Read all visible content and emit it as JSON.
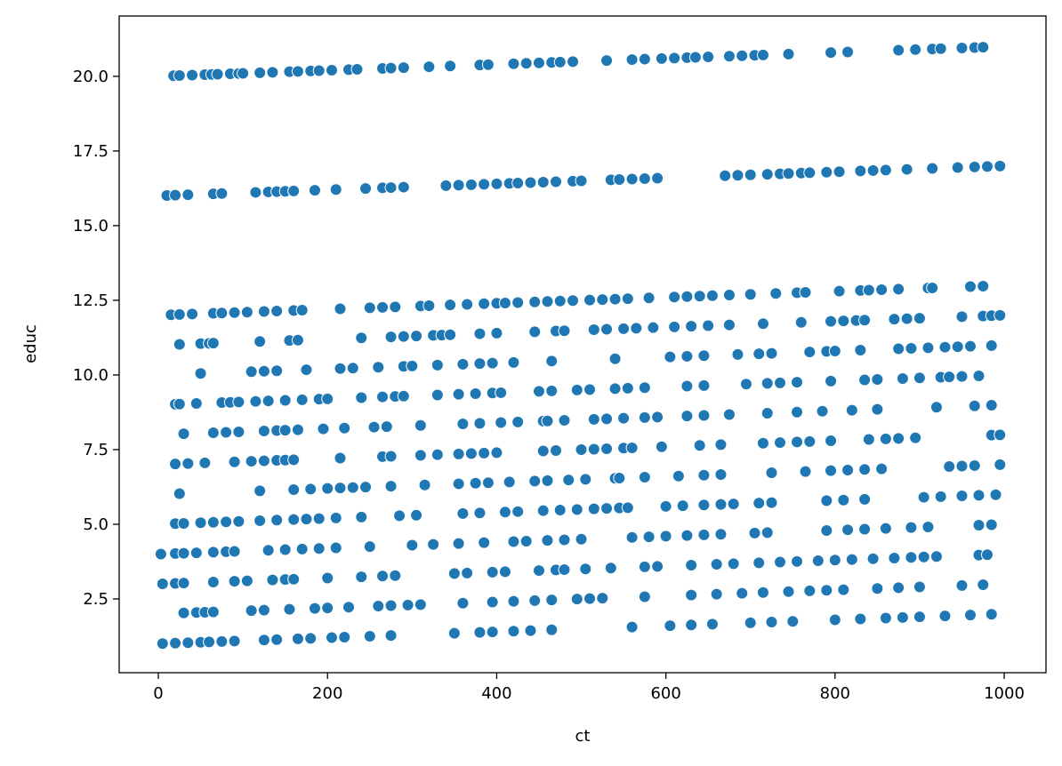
{
  "chart_data": {
    "type": "scatter",
    "xlabel": "ct",
    "ylabel": "educ",
    "color": "#1f77b4",
    "xlim": [
      -46.3,
      1049.4
    ],
    "ylim": [
      0.03,
      22.02
    ],
    "xticks": [
      0,
      200,
      400,
      600,
      800,
      1000
    ],
    "yticks": [
      {
        "value": 2.5,
        "label": "2.5"
      },
      {
        "value": 5,
        "label": "5.0"
      },
      {
        "value": 7.5,
        "label": "7.5"
      },
      {
        "value": 10,
        "label": "10.0"
      },
      {
        "value": 12.5,
        "label": "12.5"
      },
      {
        "value": 15,
        "label": "15.0"
      },
      {
        "value": 17.5,
        "label": "17.5"
      },
      {
        "value": 20,
        "label": "20.0"
      }
    ],
    "x": [
      18,
      25,
      40,
      55,
      63,
      70,
      85,
      95,
      100,
      120,
      135,
      155,
      165,
      180,
      190,
      205,
      225,
      235,
      265,
      275,
      290,
      320,
      345,
      380,
      390,
      420,
      435,
      450,
      465,
      475,
      490,
      530,
      560,
      575,
      595,
      610,
      625,
      635,
      650,
      675,
      690,
      705,
      715,
      745,
      795,
      815,
      875,
      895,
      915,
      925,
      950,
      965,
      975,
      10,
      20,
      35,
      65,
      75,
      115,
      130,
      140,
      150,
      160,
      185,
      210,
      245,
      265,
      275,
      290,
      340,
      355,
      370,
      385,
      400,
      415,
      425,
      440,
      455,
      470,
      490,
      500,
      535,
      545,
      560,
      575,
      590,
      670,
      685,
      700,
      720,
      735,
      745,
      760,
      770,
      790,
      805,
      830,
      845,
      860,
      885,
      915,
      945,
      965,
      980,
      995,
      15,
      25,
      40,
      65,
      75,
      90,
      105,
      125,
      140,
      160,
      170,
      215,
      250,
      265,
      280,
      310,
      320,
      345,
      365,
      385,
      400,
      410,
      425,
      445,
      460,
      475,
      490,
      510,
      525,
      540,
      555,
      580,
      610,
      625,
      640,
      655,
      675,
      700,
      730,
      755,
      765,
      805,
      830,
      840,
      855,
      875,
      910,
      915,
      960,
      975,
      25,
      50,
      60,
      65,
      120,
      155,
      165,
      240,
      275,
      290,
      305,
      325,
      335,
      345,
      380,
      400,
      445,
      470,
      480,
      515,
      530,
      550,
      565,
      585,
      610,
      630,
      650,
      675,
      715,
      760,
      795,
      810,
      825,
      835,
      870,
      885,
      900,
      950,
      975,
      985,
      995,
      50,
      110,
      125,
      140,
      175,
      215,
      230,
      260,
      290,
      300,
      330,
      360,
      380,
      395,
      420,
      465,
      540,
      605,
      625,
      645,
      685,
      710,
      725,
      770,
      790,
      800,
      830,
      875,
      890,
      910,
      930,
      945,
      960,
      985,
      20,
      25,
      45,
      75,
      85,
      95,
      115,
      130,
      150,
      170,
      190,
      200,
      240,
      265,
      280,
      290,
      330,
      355,
      375,
      395,
      405,
      450,
      465,
      495,
      510,
      540,
      555,
      575,
      625,
      645,
      695,
      720,
      735,
      755,
      795,
      835,
      850,
      880,
      900,
      925,
      935,
      950,
      970,
      30,
      65,
      80,
      95,
      125,
      140,
      150,
      165,
      195,
      220,
      255,
      270,
      310,
      360,
      380,
      405,
      425,
      455,
      460,
      480,
      515,
      530,
      550,
      575,
      590,
      625,
      645,
      675,
      720,
      755,
      785,
      820,
      850,
      920,
      965,
      985,
      20,
      35,
      55,
      90,
      110,
      125,
      140,
      150,
      160,
      215,
      265,
      275,
      310,
      330,
      355,
      370,
      385,
      400,
      455,
      470,
      500,
      515,
      530,
      550,
      560,
      595,
      640,
      665,
      715,
      735,
      755,
      770,
      795,
      840,
      860,
      875,
      895,
      985,
      995,
      25,
      120,
      160,
      180,
      200,
      215,
      230,
      245,
      275,
      315,
      355,
      375,
      390,
      415,
      445,
      460,
      485,
      505,
      540,
      545,
      575,
      615,
      645,
      665,
      725,
      765,
      795,
      815,
      835,
      855,
      935,
      950,
      965,
      995,
      20,
      30,
      50,
      65,
      80,
      95,
      120,
      140,
      160,
      175,
      190,
      210,
      240,
      285,
      305,
      360,
      380,
      410,
      425,
      455,
      475,
      495,
      515,
      530,
      545,
      555,
      600,
      620,
      645,
      665,
      680,
      710,
      725,
      790,
      810,
      835,
      905,
      925,
      950,
      970,
      990,
      3,
      20,
      30,
      45,
      65,
      80,
      90,
      130,
      150,
      170,
      190,
      210,
      250,
      300,
      325,
      355,
      385,
      420,
      435,
      460,
      480,
      500,
      560,
      580,
      600,
      625,
      645,
      665,
      705,
      720,
      790,
      815,
      835,
      860,
      890,
      910,
      970,
      985,
      5,
      20,
      30,
      65,
      90,
      105,
      135,
      150,
      160,
      200,
      240,
      265,
      280,
      350,
      365,
      395,
      410,
      450,
      470,
      480,
      505,
      535,
      575,
      590,
      630,
      660,
      680,
      710,
      735,
      755,
      780,
      800,
      820,
      845,
      870,
      890,
      905,
      920,
      970,
      980,
      30,
      45,
      55,
      65,
      110,
      125,
      155,
      185,
      200,
      225,
      260,
      275,
      295,
      310,
      360,
      395,
      420,
      445,
      465,
      495,
      510,
      525,
      575,
      630,
      660,
      690,
      715,
      745,
      770,
      790,
      810,
      850,
      875,
      900,
      950,
      975,
      5,
      20,
      35,
      50,
      60,
      75,
      90,
      125,
      140,
      165,
      180,
      205,
      220,
      250,
      275,
      350,
      380,
      395,
      420,
      440,
      465,
      560,
      605,
      630,
      655,
      700,
      725,
      750,
      800,
      830,
      860,
      880,
      900,
      930,
      960,
      985
    ],
    "values": [
      20.018,
      20.025,
      20.04,
      20.055,
      20.063,
      20.07,
      20.085,
      20.095,
      20.1,
      20.12,
      20.135,
      20.155,
      20.165,
      20.18,
      20.19,
      20.205,
      20.225,
      20.235,
      20.265,
      20.275,
      20.29,
      20.32,
      20.345,
      20.38,
      20.39,
      20.42,
      20.435,
      20.45,
      20.465,
      20.475,
      20.49,
      20.53,
      20.56,
      20.575,
      20.595,
      20.61,
      20.625,
      20.635,
      20.65,
      20.675,
      20.69,
      20.705,
      20.715,
      20.745,
      20.795,
      20.815,
      20.875,
      20.895,
      20.915,
      20.925,
      20.95,
      20.965,
      20.975,
      16.01,
      16.02,
      16.035,
      16.065,
      16.075,
      16.115,
      16.13,
      16.14,
      16.15,
      16.16,
      16.185,
      16.21,
      16.245,
      16.265,
      16.275,
      16.29,
      16.34,
      16.355,
      16.37,
      16.385,
      16.4,
      16.415,
      16.425,
      16.44,
      16.455,
      16.47,
      16.49,
      16.5,
      16.535,
      16.545,
      16.56,
      16.575,
      16.59,
      16.67,
      16.685,
      16.7,
      16.72,
      16.735,
      16.745,
      16.76,
      16.77,
      16.79,
      16.805,
      16.83,
      16.845,
      16.86,
      16.885,
      16.915,
      16.945,
      16.965,
      16.98,
      16.995,
      12.015,
      12.025,
      12.04,
      12.065,
      12.075,
      12.09,
      12.105,
      12.125,
      12.14,
      12.16,
      12.17,
      12.215,
      12.25,
      12.265,
      12.28,
      12.31,
      12.32,
      12.345,
      12.365,
      12.385,
      12.4,
      12.41,
      12.425,
      12.445,
      12.46,
      12.475,
      12.49,
      12.51,
      12.525,
      12.54,
      12.555,
      12.58,
      12.61,
      12.625,
      12.64,
      12.655,
      12.675,
      12.7,
      12.73,
      12.755,
      12.765,
      12.805,
      12.83,
      12.84,
      12.855,
      12.875,
      12.91,
      12.915,
      12.96,
      12.975,
      11.025,
      11.05,
      11.06,
      11.065,
      11.12,
      11.155,
      11.165,
      11.24,
      11.275,
      11.29,
      11.305,
      11.325,
      11.335,
      11.345,
      11.38,
      11.4,
      11.445,
      11.47,
      11.48,
      11.515,
      11.53,
      11.55,
      11.565,
      11.585,
      11.61,
      11.63,
      11.65,
      11.675,
      11.715,
      11.76,
      11.795,
      11.81,
      11.825,
      11.835,
      11.87,
      11.885,
      11.9,
      11.95,
      11.975,
      11.985,
      11.995,
      10.05,
      10.11,
      10.125,
      10.14,
      10.175,
      10.215,
      10.23,
      10.26,
      10.29,
      10.3,
      10.33,
      10.36,
      10.38,
      10.395,
      10.42,
      10.465,
      10.54,
      10.605,
      10.625,
      10.645,
      10.685,
      10.71,
      10.725,
      10.77,
      10.79,
      10.8,
      10.83,
      10.875,
      10.89,
      10.91,
      10.93,
      10.945,
      10.96,
      10.985,
      9.02,
      9.025,
      9.045,
      9.075,
      9.085,
      9.095,
      9.115,
      9.13,
      9.15,
      9.17,
      9.19,
      9.2,
      9.24,
      9.265,
      9.28,
      9.29,
      9.33,
      9.355,
      9.375,
      9.395,
      9.405,
      9.45,
      9.465,
      9.495,
      9.51,
      9.54,
      9.555,
      9.575,
      9.625,
      9.645,
      9.695,
      9.72,
      9.735,
      9.755,
      9.795,
      9.835,
      9.85,
      9.88,
      9.9,
      9.925,
      9.935,
      9.95,
      9.97,
      8.03,
      8.065,
      8.08,
      8.095,
      8.125,
      8.14,
      8.15,
      8.165,
      8.195,
      8.22,
      8.255,
      8.27,
      8.31,
      8.36,
      8.38,
      8.405,
      8.425,
      8.455,
      8.46,
      8.48,
      8.515,
      8.53,
      8.55,
      8.575,
      8.59,
      8.625,
      8.645,
      8.675,
      8.72,
      8.755,
      8.785,
      8.82,
      8.85,
      8.92,
      8.965,
      8.985,
      7.02,
      7.035,
      7.055,
      7.09,
      7.11,
      7.125,
      7.14,
      7.15,
      7.16,
      7.215,
      7.265,
      7.275,
      7.31,
      7.33,
      7.355,
      7.37,
      7.385,
      7.4,
      7.455,
      7.47,
      7.5,
      7.515,
      7.53,
      7.55,
      7.56,
      7.595,
      7.64,
      7.665,
      7.715,
      7.735,
      7.755,
      7.77,
      7.795,
      7.84,
      7.86,
      7.875,
      7.895,
      7.985,
      7.995,
      6.025,
      6.12,
      6.16,
      6.18,
      6.2,
      6.215,
      6.23,
      6.245,
      6.275,
      6.315,
      6.355,
      6.375,
      6.39,
      6.415,
      6.445,
      6.46,
      6.485,
      6.505,
      6.54,
      6.545,
      6.575,
      6.615,
      6.645,
      6.665,
      6.725,
      6.765,
      6.795,
      6.815,
      6.835,
      6.855,
      6.935,
      6.95,
      6.965,
      6.995,
      5.02,
      5.03,
      5.05,
      5.065,
      5.08,
      5.095,
      5.12,
      5.14,
      5.16,
      5.175,
      5.19,
      5.21,
      5.24,
      5.285,
      5.305,
      5.36,
      5.38,
      5.41,
      5.425,
      5.455,
      5.475,
      5.495,
      5.515,
      5.53,
      5.545,
      5.555,
      5.6,
      5.62,
      5.645,
      5.665,
      5.68,
      5.71,
      5.725,
      5.79,
      5.81,
      5.835,
      5.905,
      5.925,
      5.95,
      5.97,
      5.99,
      4.003,
      4.02,
      4.03,
      4.045,
      4.065,
      4.08,
      4.09,
      4.13,
      4.15,
      4.17,
      4.19,
      4.21,
      4.25,
      4.3,
      4.325,
      4.355,
      4.385,
      4.42,
      4.435,
      4.46,
      4.48,
      4.5,
      4.56,
      4.58,
      4.6,
      4.625,
      4.645,
      4.665,
      4.705,
      4.72,
      4.79,
      4.815,
      4.835,
      4.86,
      4.89,
      4.91,
      4.97,
      4.985,
      3.005,
      3.02,
      3.03,
      3.065,
      3.09,
      3.105,
      3.135,
      3.15,
      3.16,
      3.2,
      3.24,
      3.265,
      3.28,
      3.35,
      3.365,
      3.395,
      3.41,
      3.45,
      3.47,
      3.48,
      3.505,
      3.535,
      3.575,
      3.59,
      3.63,
      3.66,
      3.68,
      3.71,
      3.735,
      3.755,
      3.78,
      3.8,
      3.82,
      3.845,
      3.87,
      3.89,
      3.905,
      3.92,
      3.97,
      3.98,
      2.03,
      2.045,
      2.055,
      2.065,
      2.11,
      2.125,
      2.155,
      2.185,
      2.2,
      2.225,
      2.26,
      2.275,
      2.295,
      2.31,
      2.36,
      2.395,
      2.42,
      2.445,
      2.465,
      2.495,
      2.51,
      2.525,
      2.575,
      2.63,
      2.66,
      2.69,
      2.715,
      2.745,
      2.77,
      2.79,
      2.81,
      2.85,
      2.875,
      2.9,
      2.95,
      2.975,
      1.005,
      1.02,
      1.035,
      1.05,
      1.06,
      1.075,
      1.09,
      1.125,
      1.14,
      1.165,
      1.18,
      1.205,
      1.22,
      1.25,
      1.275,
      1.35,
      1.38,
      1.395,
      1.42,
      1.44,
      1.465,
      1.56,
      1.605,
      1.63,
      1.655,
      1.7,
      1.725,
      1.75,
      1.8,
      1.83,
      1.86,
      1.88,
      1.9,
      1.93,
      1.96,
      1.985
    ]
  }
}
